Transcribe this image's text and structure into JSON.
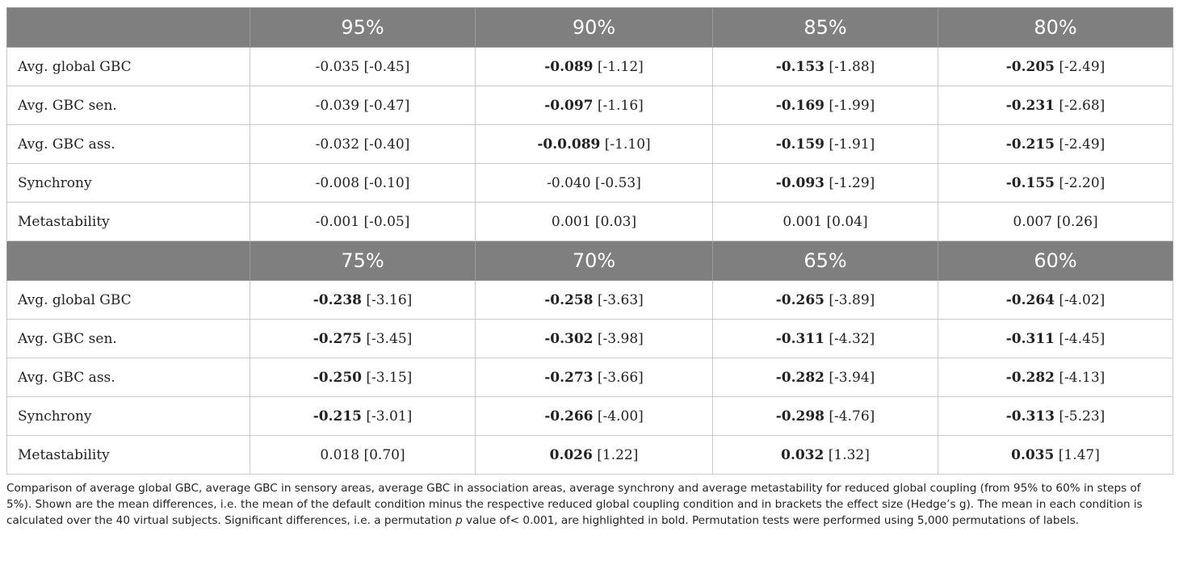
{
  "table": {
    "blocks": [
      {
        "headers": [
          "95%",
          "90%",
          "85%",
          "80%"
        ],
        "rows": [
          {
            "label": "Avg. global GBC",
            "cells": [
              {
                "mean": "-0.035",
                "g": "[-0.45]",
                "bold": false
              },
              {
                "mean": "-0.089",
                "g": "[-1.12]",
                "bold": true
              },
              {
                "mean": "-0.153",
                "g": "[-1.88]",
                "bold": true
              },
              {
                "mean": "-0.205",
                "g": "[-2.49]",
                "bold": true
              }
            ]
          },
          {
            "label": "Avg. GBC sen.",
            "cells": [
              {
                "mean": "-0.039",
                "g": "[-0.47]",
                "bold": false
              },
              {
                "mean": "-0.097",
                "g": "[-1.16]",
                "bold": true
              },
              {
                "mean": "-0.169",
                "g": "[-1.99]",
                "bold": true
              },
              {
                "mean": "-0.231",
                "g": "[-2.68]",
                "bold": true
              }
            ]
          },
          {
            "label": "Avg. GBC ass.",
            "cells": [
              {
                "mean": "-0.032",
                "g": "[-0.40]",
                "bold": false
              },
              {
                "mean": "-0.0.089",
                "g": "[-1.10]",
                "bold": true
              },
              {
                "mean": "-0.159",
                "g": "[-1.91]",
                "bold": true
              },
              {
                "mean": "-0.215",
                "g": "[-2.49]",
                "bold": true
              }
            ]
          },
          {
            "label": "Synchrony",
            "cells": [
              {
                "mean": "-0.008",
                "g": "[-0.10]",
                "bold": false
              },
              {
                "mean": "-0.040",
                "g": "[-0.53]",
                "bold": false
              },
              {
                "mean": "-0.093",
                "g": "[-1.29]",
                "bold": true
              },
              {
                "mean": "-0.155",
                "g": "[-2.20]",
                "bold": true
              }
            ]
          },
          {
            "label": "Metastability",
            "cells": [
              {
                "mean": "-0.001",
                "g": "[-0.05]",
                "bold": false
              },
              {
                "mean": "0.001",
                "g": "[0.03]",
                "bold": false
              },
              {
                "mean": "0.001",
                "g": "[0.04]",
                "bold": false
              },
              {
                "mean": "0.007",
                "g": "[0.26]",
                "bold": false
              }
            ]
          }
        ]
      },
      {
        "headers": [
          "75%",
          "70%",
          "65%",
          "60%"
        ],
        "rows": [
          {
            "label": "Avg. global GBC",
            "cells": [
              {
                "mean": "-0.238",
                "g": "[-3.16]",
                "bold": true
              },
              {
                "mean": "-0.258",
                "g": "[-3.63]",
                "bold": true
              },
              {
                "mean": "-0.265",
                "g": "[-3.89]",
                "bold": true
              },
              {
                "mean": "-0.264",
                "g": "[-4.02]",
                "bold": true
              }
            ]
          },
          {
            "label": "Avg. GBC sen.",
            "cells": [
              {
                "mean": "-0.275",
                "g": "[-3.45]",
                "bold": true
              },
              {
                "mean": "-0.302",
                "g": "[-3.98]",
                "bold": true
              },
              {
                "mean": "-0.311",
                "g": "[-4.32]",
                "bold": true
              },
              {
                "mean": "-0.311",
                "g": "[-4.45]",
                "bold": true
              }
            ]
          },
          {
            "label": "Avg. GBC ass.",
            "cells": [
              {
                "mean": "-0.250",
                "g": "[-3.15]",
                "bold": true
              },
              {
                "mean": "-0.273",
                "g": "[-3.66]",
                "bold": true
              },
              {
                "mean": "-0.282",
                "g": "[-3.94]",
                "bold": true
              },
              {
                "mean": "-0.282",
                "g": "[-4.13]",
                "bold": true
              }
            ]
          },
          {
            "label": "Synchrony",
            "cells": [
              {
                "mean": "-0.215",
                "g": "[-3.01]",
                "bold": true
              },
              {
                "mean": "-0.266",
                "g": "[-4.00]",
                "bold": true
              },
              {
                "mean": "-0.298",
                "g": "[-4.76]",
                "bold": true
              },
              {
                "mean": "-0.313",
                "g": "[-5.23]",
                "bold": true
              }
            ]
          },
          {
            "label": "Metastability",
            "cells": [
              {
                "mean": "0.018",
                "g": "[0.70]",
                "bold": false
              },
              {
                "mean": "0.026",
                "g": "[1.22]",
                "bold": true
              },
              {
                "mean": "0.032",
                "g": "[1.32]",
                "bold": true
              },
              {
                "mean": "0.035",
                "g": "[1.47]",
                "bold": true
              }
            ]
          }
        ]
      }
    ]
  },
  "caption": {
    "part1": "Comparison of average global GBC, average GBC in sensory areas, average GBC in association areas, average synchrony and average metastability for reduced global coupling (from 95% to 60% in steps of 5%). Shown are the mean differences, i.e. the mean of the default condition minus the respective reduced global coupling condition and in brackets the effect size (Hedge’s g). The mean in each condition is calculated over the 40 virtual subjects. Significant differences, i.e. a permutation ",
    "italic": "p",
    "part2": " value of< 0.001, are highlighted in bold. Permutation tests were performed using 5,000 permutations of labels."
  },
  "colors": {
    "header_bg": "#7f7f7f",
    "header_text": "#ffffff",
    "grid": "#c9c9c9",
    "text": "#222222"
  }
}
